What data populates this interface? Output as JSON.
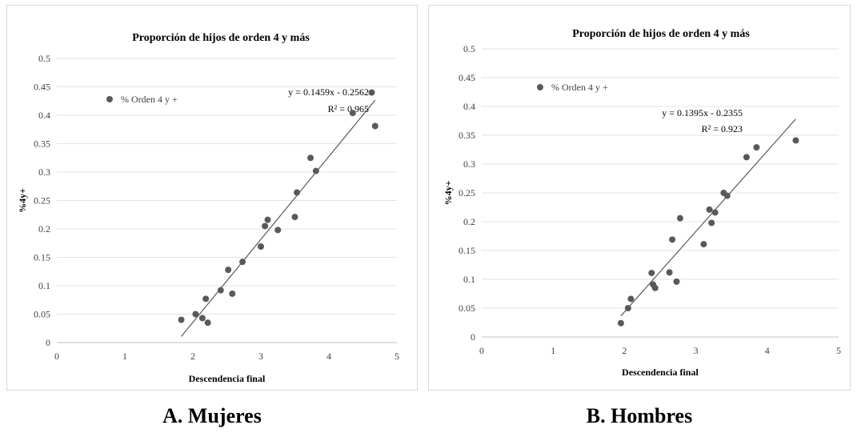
{
  "chart_data": [
    {
      "type": "scatter",
      "title": "Proporción de hijos de orden 4 y más",
      "xlabel": "Descendencia final",
      "ylabel": "%4y+",
      "xlim": [
        0,
        5
      ],
      "ylim": [
        0,
        0.5
      ],
      "x_ticks": [
        "0",
        "1",
        "2",
        "3",
        "4",
        "5"
      ],
      "y_ticks": [
        "0",
        "0.05",
        "0.1",
        "0.15",
        "0.2",
        "0.25",
        "0.3",
        "0.35",
        "0.4",
        "0.45",
        "0.5"
      ],
      "grid": "horizontal",
      "legend": {
        "position": "top-left",
        "entries": [
          "% Orden 4 y +"
        ]
      },
      "series": [
        {
          "name": "% Orden 4 y +",
          "color": "#595959",
          "points": [
            {
              "x": 1.83,
              "y": 0.04
            },
            {
              "x": 2.04,
              "y": 0.05
            },
            {
              "x": 2.14,
              "y": 0.043
            },
            {
              "x": 2.19,
              "y": 0.077
            },
            {
              "x": 2.22,
              "y": 0.035
            },
            {
              "x": 2.41,
              "y": 0.092
            },
            {
              "x": 2.52,
              "y": 0.128
            },
            {
              "x": 2.58,
              "y": 0.086
            },
            {
              "x": 2.73,
              "y": 0.142
            },
            {
              "x": 3.0,
              "y": 0.169
            },
            {
              "x": 3.06,
              "y": 0.205
            },
            {
              "x": 3.1,
              "y": 0.216
            },
            {
              "x": 3.25,
              "y": 0.198
            },
            {
              "x": 3.5,
              "y": 0.221
            },
            {
              "x": 3.53,
              "y": 0.264
            },
            {
              "x": 3.73,
              "y": 0.325
            },
            {
              "x": 3.81,
              "y": 0.302
            },
            {
              "x": 4.35,
              "y": 0.404
            },
            {
              "x": 4.63,
              "y": 0.44
            },
            {
              "x": 4.68,
              "y": 0.381
            }
          ]
        }
      ],
      "trendline": {
        "slope": 0.1459,
        "intercept": -0.2562,
        "x_range": [
          1.83,
          4.68
        ],
        "equation": "y = 0.1459x - 0.2562",
        "r2": "R² = 0.965"
      },
      "caption": "A. Mujeres"
    },
    {
      "type": "scatter",
      "title": "Proporción de hijos de orden 4 y más",
      "xlabel": "Descendencia final",
      "ylabel": "%4y+",
      "xlim": [
        0,
        5
      ],
      "ylim": [
        0,
        0.5
      ],
      "x_ticks": [
        "0",
        "1",
        "2",
        "3",
        "4",
        "5"
      ],
      "y_ticks": [
        "0",
        "0.05",
        "0.1",
        "0.15",
        "0.2",
        "0.25",
        "0.3",
        "0.35",
        "0.4",
        "0.45",
        "0.5"
      ],
      "grid": "horizontal",
      "legend": {
        "position": "top-left",
        "entries": [
          "% Orden    4 y +"
        ]
      },
      "series": [
        {
          "name": "% Orden    4 y +",
          "color": "#595959",
          "points": [
            {
              "x": 1.95,
              "y": 0.024
            },
            {
              "x": 2.05,
              "y": 0.05
            },
            {
              "x": 2.09,
              "y": 0.066
            },
            {
              "x": 2.38,
              "y": 0.111
            },
            {
              "x": 2.4,
              "y": 0.091
            },
            {
              "x": 2.43,
              "y": 0.085
            },
            {
              "x": 2.63,
              "y": 0.112
            },
            {
              "x": 2.67,
              "y": 0.169
            },
            {
              "x": 2.73,
              "y": 0.096
            },
            {
              "x": 2.78,
              "y": 0.206
            },
            {
              "x": 3.11,
              "y": 0.161
            },
            {
              "x": 3.19,
              "y": 0.221
            },
            {
              "x": 3.22,
              "y": 0.198
            },
            {
              "x": 3.27,
              "y": 0.216
            },
            {
              "x": 3.39,
              "y": 0.25
            },
            {
              "x": 3.44,
              "y": 0.245
            },
            {
              "x": 3.71,
              "y": 0.312
            },
            {
              "x": 3.85,
              "y": 0.329
            },
            {
              "x": 4.4,
              "y": 0.341
            }
          ]
        }
      ],
      "trendline": {
        "slope": 0.1395,
        "intercept": -0.2355,
        "x_range": [
          1.95,
          4.4
        ],
        "equation": "y = 0.1395x - 0.2355",
        "r2": "R² = 0.923"
      },
      "caption": "B. Hombres"
    }
  ]
}
